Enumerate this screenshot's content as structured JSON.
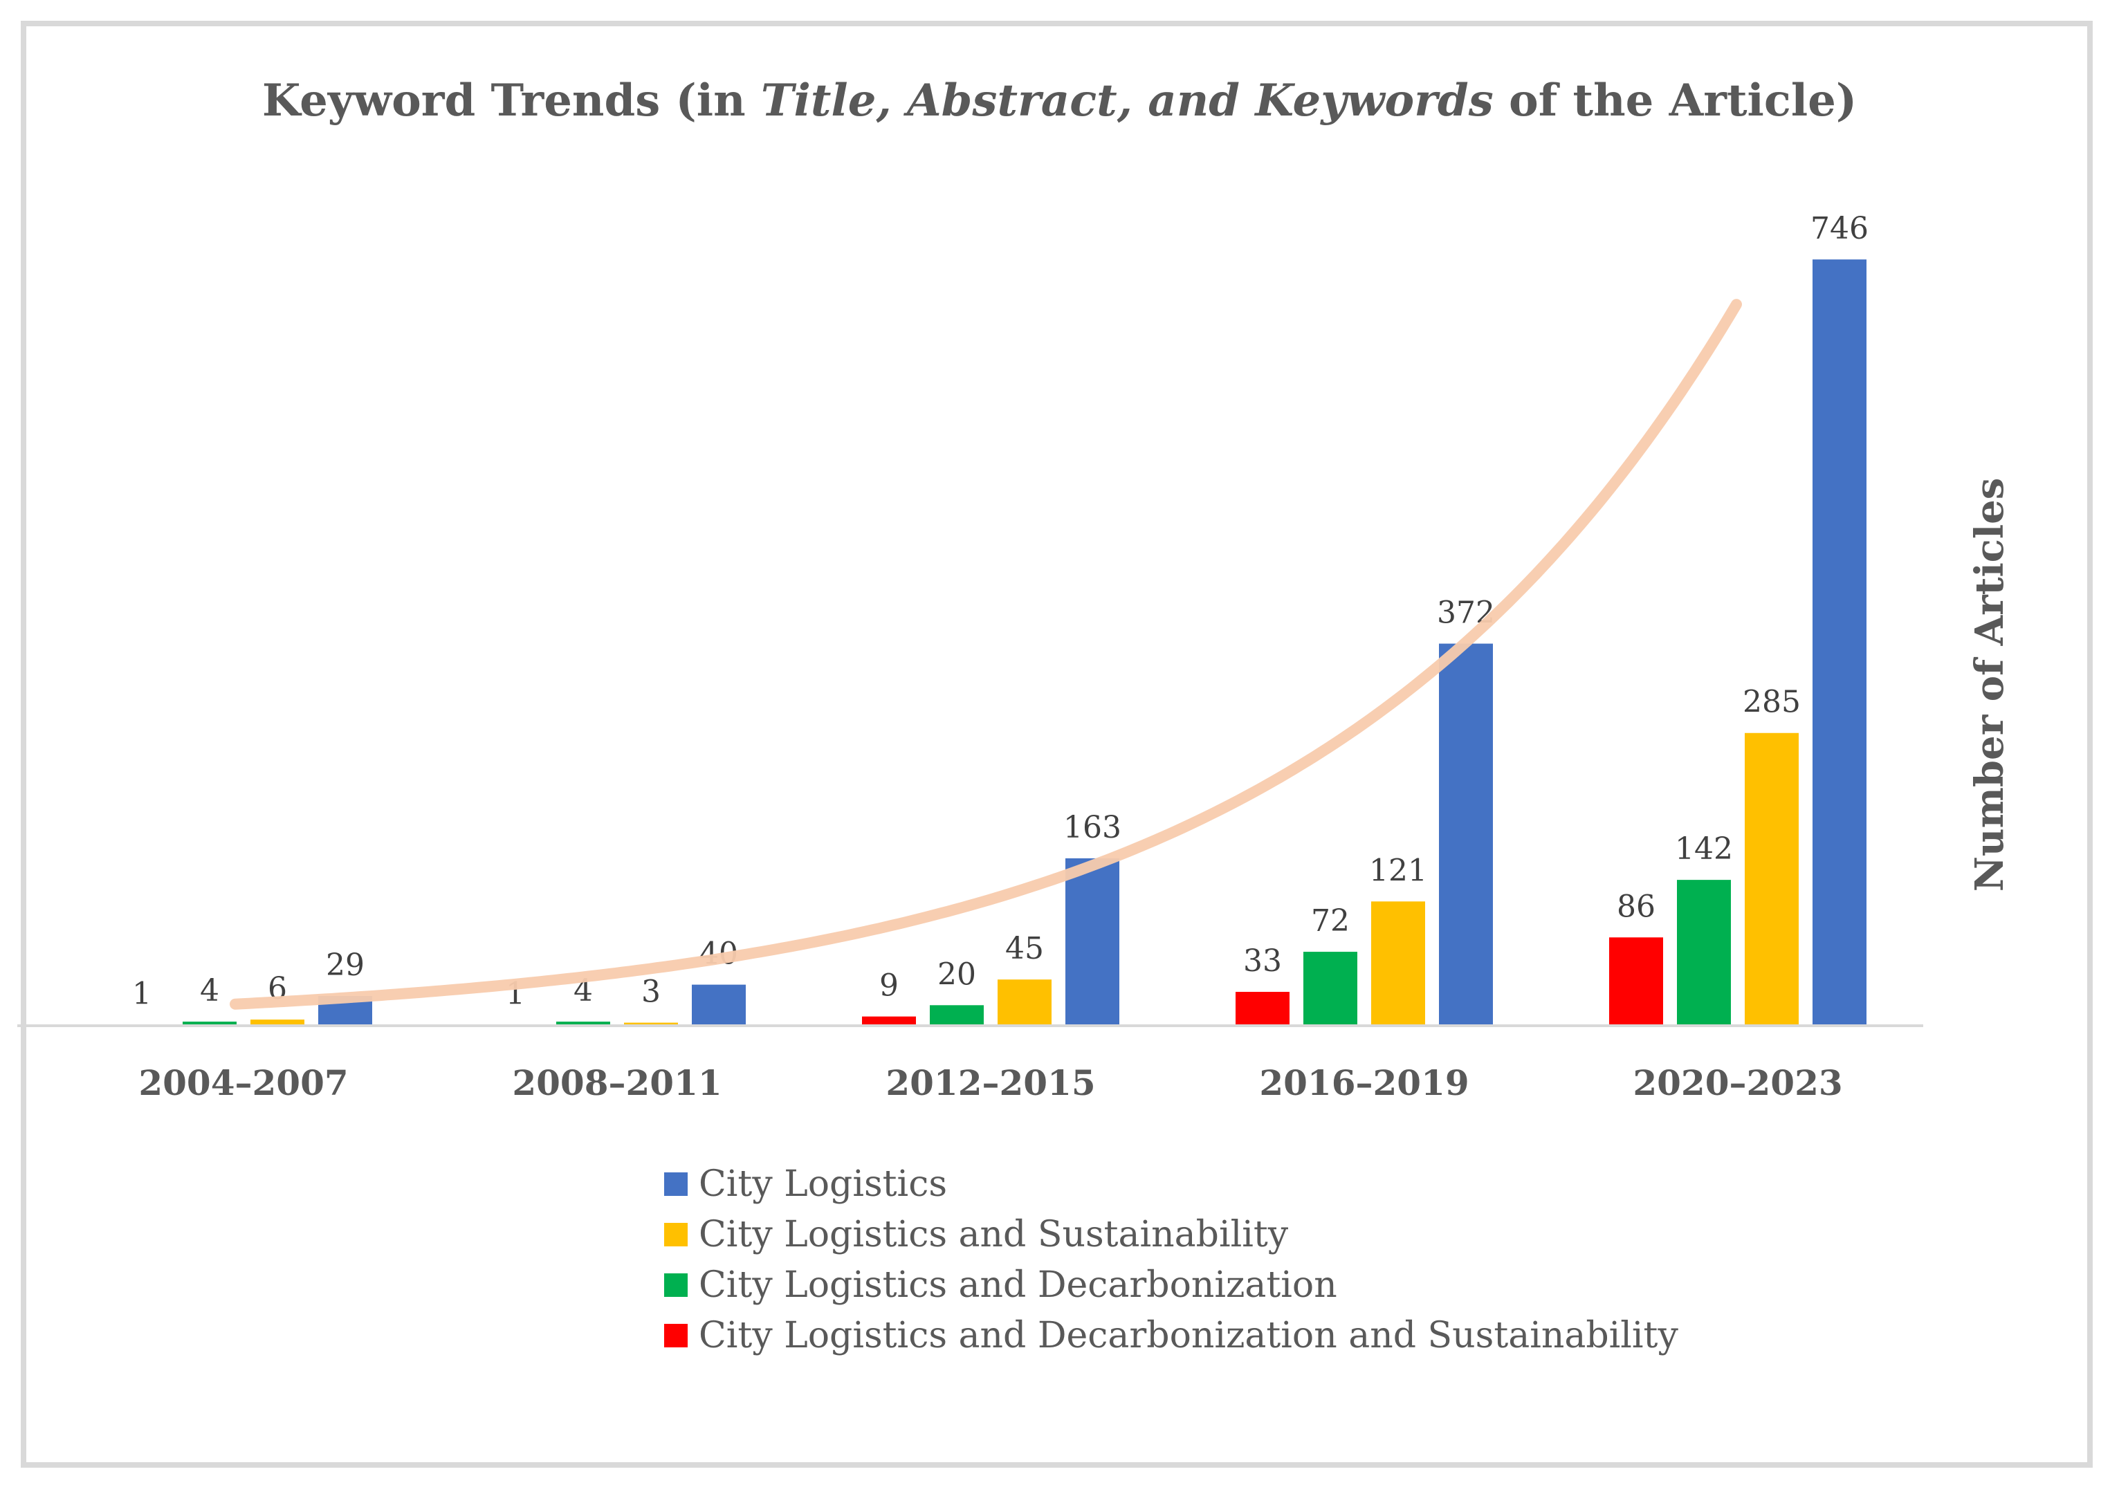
{
  "chart_data": {
    "type": "bar",
    "title": {
      "prefix": "Keyword Trends (in ",
      "italic": "Title, Abstract, and Keywords",
      "suffix": " of the Article)"
    },
    "xlabel": "",
    "ylabel": "Number of Articles",
    "ylim": [
      0,
      800
    ],
    "grid": false,
    "legend_position": "bottom-center",
    "categories": [
      "2004–2007",
      "2008–2011",
      "2012–2015",
      "2016–2019",
      "2020–2023"
    ],
    "series": [
      {
        "name": "City Logistics and Decarbonization and Sustainability",
        "color": "#ff0000",
        "values": [
          1,
          1,
          9,
          33,
          86
        ]
      },
      {
        "name": "City Logistics and Decarbonization",
        "color": "#00b050",
        "values": [
          4,
          4,
          20,
          72,
          142
        ]
      },
      {
        "name": "City Logistics and Sustainability",
        "color": "#ffc000",
        "values": [
          6,
          3,
          45,
          121,
          285
        ]
      },
      {
        "name": "City Logistics",
        "color": "#4472c4",
        "values": [
          29,
          40,
          163,
          372,
          746
        ]
      }
    ],
    "legend_order": [
      3,
      2,
      1,
      0
    ],
    "trendline": {
      "type": "exponential",
      "color": "#f8cbad"
    }
  }
}
